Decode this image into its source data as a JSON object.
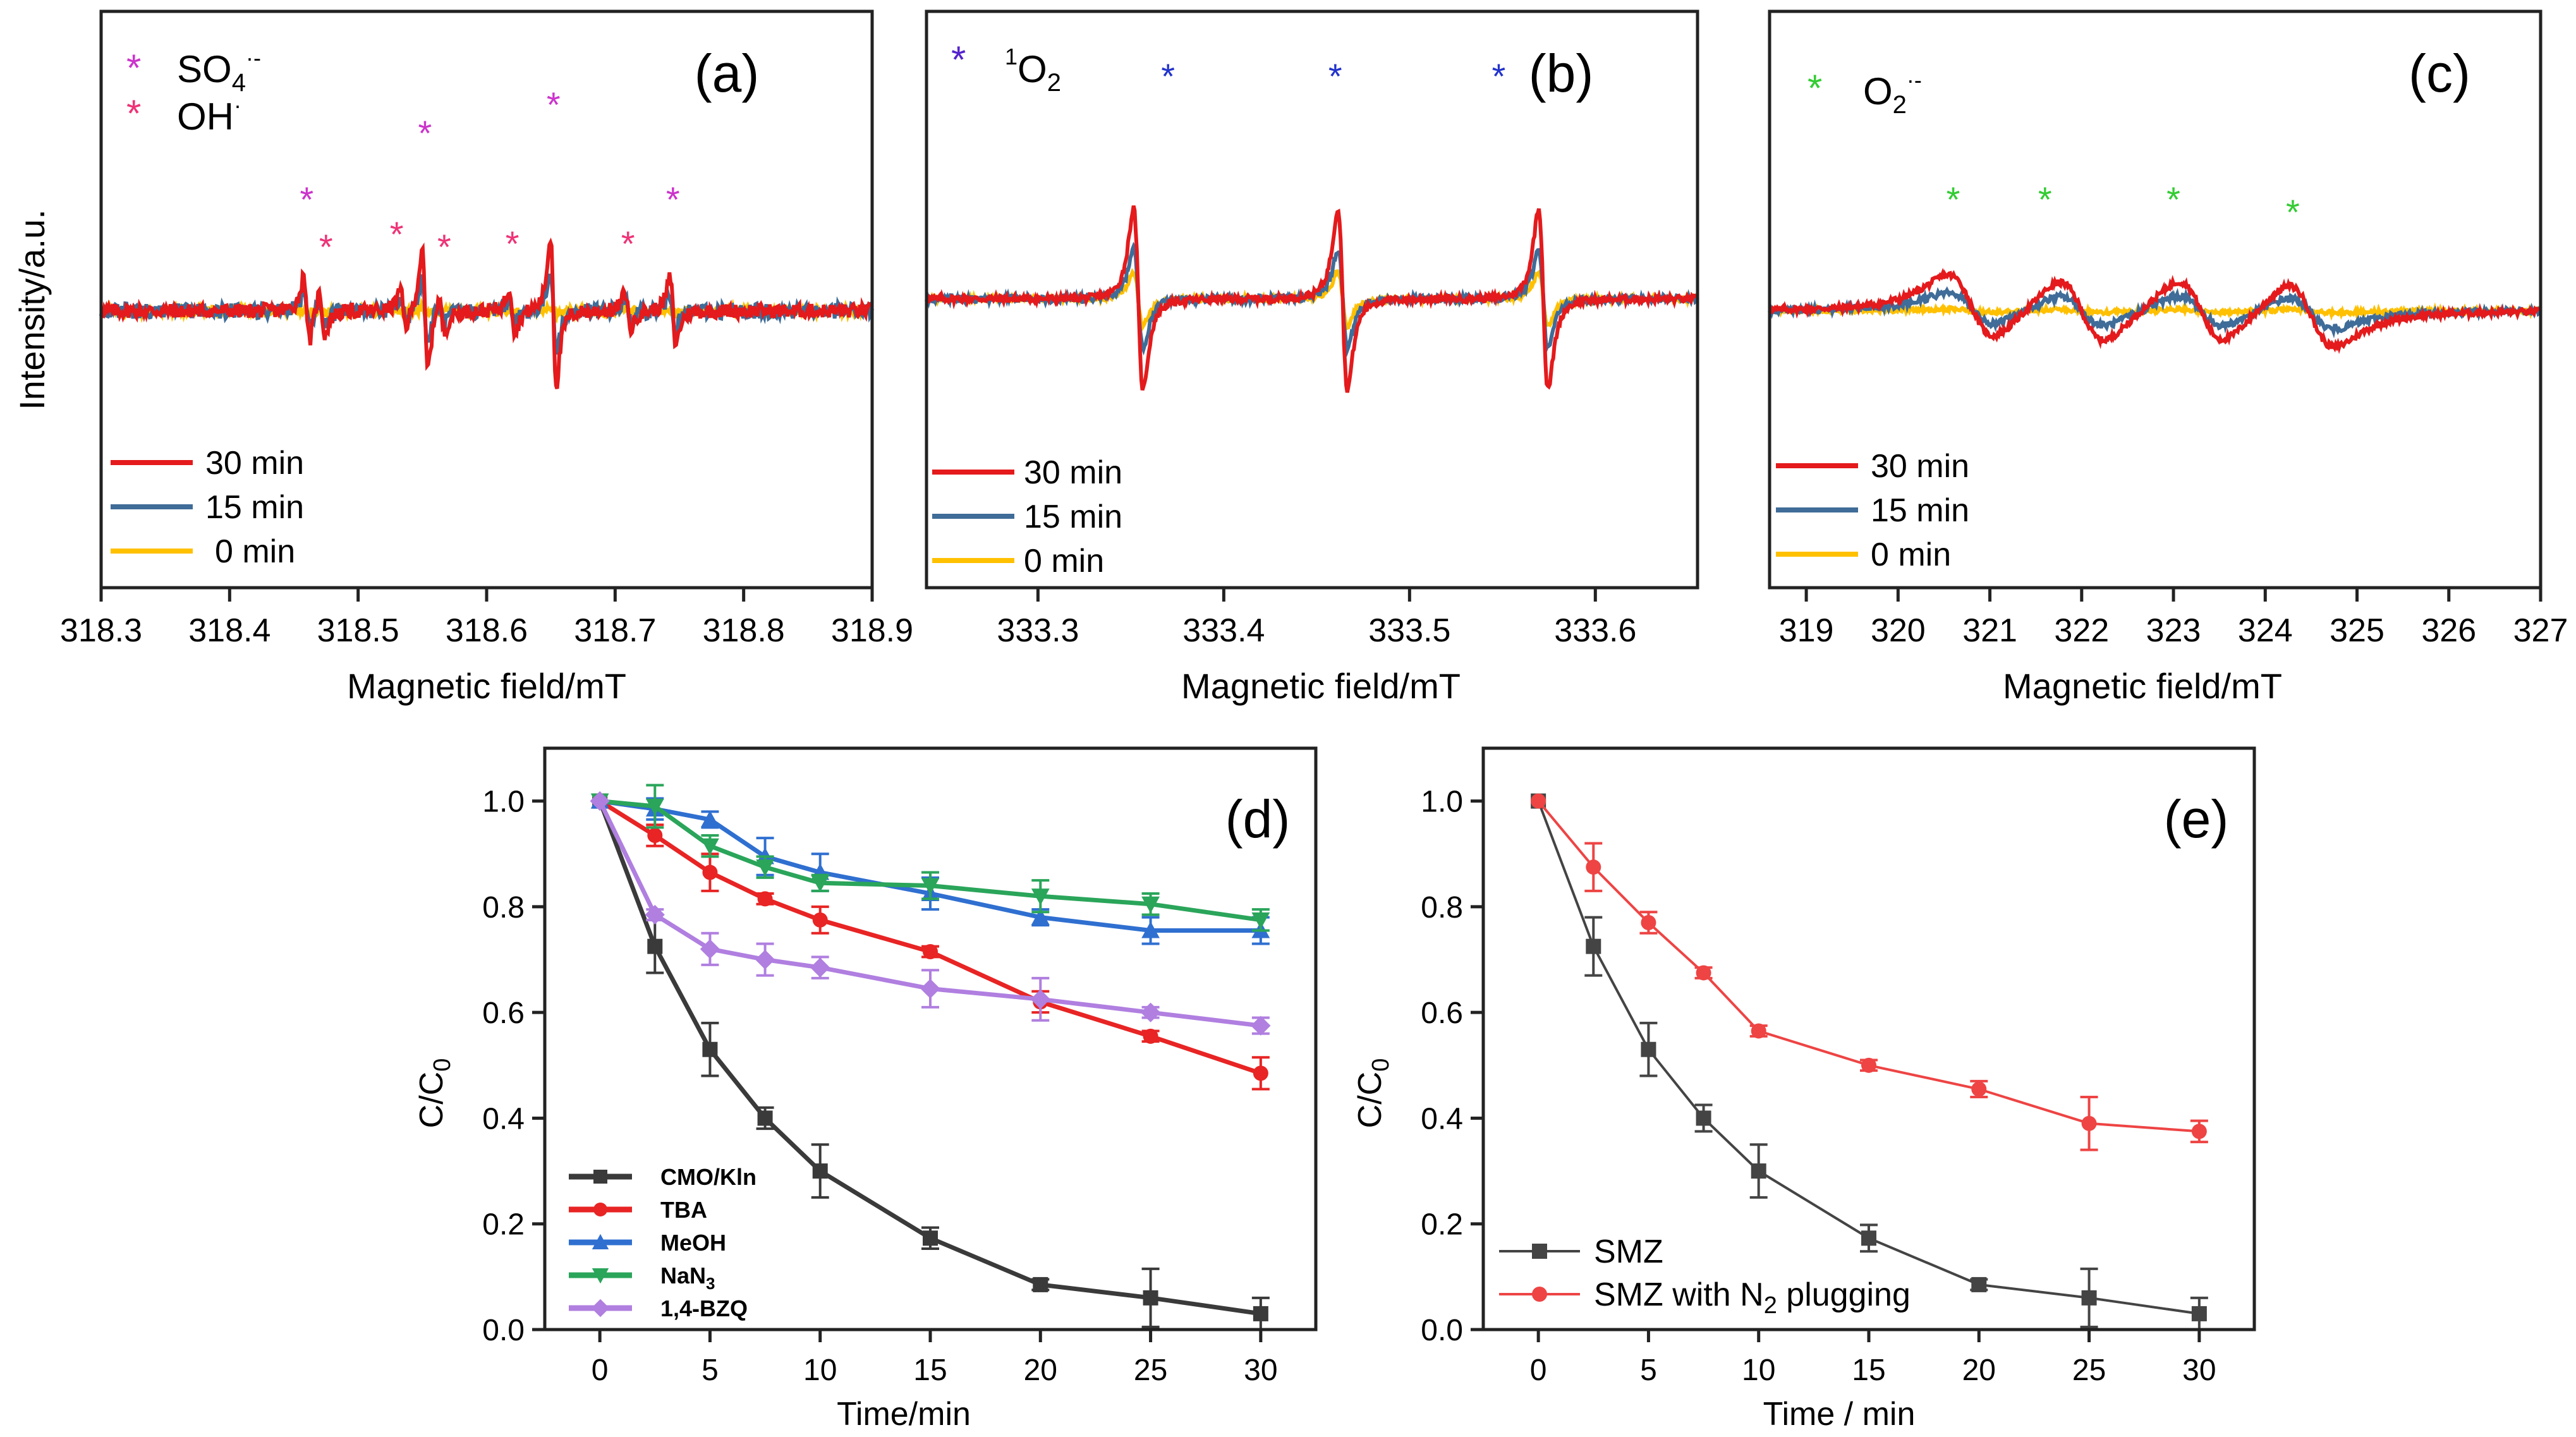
{
  "chart_data": [
    {
      "panel": "(a)",
      "type": "line",
      "ylabel": "Intensity/a.u.",
      "xlabel": "Magnetic field/mT",
      "xlim": [
        318.3,
        318.9
      ],
      "xticks": [
        "318.3",
        "318.4",
        "318.5",
        "318.6",
        "318.7",
        "318.8",
        "318.9"
      ],
      "legend": [
        "30 min",
        "15 min",
        "0 min"
      ],
      "annotations": [
        {
          "marker": "*",
          "text": "SO4",
          "sup": "·-",
          "color": "#cc33cc"
        },
        {
          "marker": "*",
          "text": "OH",
          "sup": "·",
          "color": "#ee3377"
        }
      ],
      "peak_positions": [
        318.46,
        318.472,
        318.535,
        318.552,
        318.565,
        318.62,
        318.652,
        318.71,
        318.745
      ],
      "peak_amplitudes": [
        0.9,
        0.6,
        0.5,
        1.6,
        0.5,
        0.6,
        2.0,
        0.5,
        0.9
      ],
      "series_scale": [
        1.0,
        0.55,
        0.05
      ],
      "marker_x": [
        318.46,
        318.475,
        318.53,
        318.552,
        318.567,
        318.62,
        318.652,
        318.71,
        318.745
      ],
      "marker_color_index": [
        0,
        1,
        1,
        0,
        1,
        1,
        0,
        1,
        0
      ]
    },
    {
      "panel": "(b)",
      "type": "line",
      "xlabel": "Magnetic field/mT",
      "xlim": [
        333.24,
        333.655
      ],
      "xticks": [
        "333.3",
        "333.4",
        "333.5",
        "333.6"
      ],
      "xtick_values": [
        333.3,
        333.4,
        333.5,
        333.6
      ],
      "legend": [
        "30 min",
        "15 min",
        "0 min"
      ],
      "annotations": [
        {
          "marker": "*",
          "text": "O2",
          "pre": "1",
          "color": "#5522cc"
        }
      ],
      "peak_positions": [
        333.354,
        333.464,
        333.572
      ],
      "series_scale": [
        1.0,
        0.55,
        0.3
      ],
      "marker_x": [
        333.37,
        333.46,
        333.548
      ]
    },
    {
      "panel": "(c)",
      "type": "line",
      "xlabel": "Magnetic field/mT",
      "xlim": [
        318.6,
        327
      ],
      "xticks": [
        "319",
        "320",
        "321",
        "322",
        "323",
        "324",
        "325",
        "326",
        "327"
      ],
      "xtick_values": [
        319,
        320,
        321,
        322,
        323,
        324,
        325,
        326,
        327
      ],
      "legend": [
        "30 min",
        "15 min",
        "0 min"
      ],
      "annotations": [
        {
          "marker": "*",
          "text": "O2",
          "sup": "·-",
          "color": "#33cc33"
        }
      ],
      "peak_positions": [
        320.8,
        322.0,
        323.3,
        324.5
      ],
      "series_scale": [
        1.0,
        0.5,
        0.05
      ],
      "marker_x": [
        320.6,
        321.6,
        323.0,
        324.3
      ]
    },
    {
      "panel": "(d)",
      "type": "line",
      "xlabel": "Time/min",
      "ylabel": "C/C0",
      "xlim": [
        -2.5,
        32.5
      ],
      "ylim": [
        0,
        1.1
      ],
      "xticks": [
        "0",
        "5",
        "10",
        "15",
        "20",
        "25",
        "30"
      ],
      "yticks": [
        "0.0",
        "0.2",
        "0.4",
        "0.6",
        "0.8",
        "1.0"
      ],
      "x": [
        0,
        2.5,
        5,
        7.5,
        10,
        15,
        20,
        25,
        30
      ],
      "series": [
        {
          "name": "CMO/Kln",
          "color": "#3a3a3a",
          "marker": "square",
          "values": [
            1.0,
            0.725,
            0.53,
            0.4,
            0.3,
            0.173,
            0.085,
            0.06,
            0.03
          ],
          "errors": [
            0,
            0.05,
            0.05,
            0.02,
            0.05,
            0.02,
            0.01,
            0.055,
            0.03
          ]
        },
        {
          "name": "TBA",
          "color": "#e82424",
          "marker": "circle",
          "values": [
            1.0,
            0.935,
            0.865,
            0.815,
            0.775,
            0.715,
            0.62,
            0.555,
            0.485
          ],
          "errors": [
            0,
            0.02,
            0.035,
            0.01,
            0.025,
            0.01,
            0.02,
            0.01,
            0.03
          ]
        },
        {
          "name": "MeOH",
          "color": "#2f6fd0",
          "marker": "triangle-up",
          "values": [
            1.0,
            0.985,
            0.965,
            0.895,
            0.865,
            0.825,
            0.78,
            0.755,
            0.755
          ],
          "errors": [
            0,
            0.02,
            0.015,
            0.035,
            0.035,
            0.03,
            0.015,
            0.025,
            0.025
          ]
        },
        {
          "name": "NaN3",
          "color": "#2aa55a",
          "marker": "triangle-down",
          "values": [
            1.0,
            0.99,
            0.915,
            0.875,
            0.845,
            0.84,
            0.82,
            0.805,
            0.775
          ],
          "errors": [
            0,
            0.04,
            0.02,
            0.02,
            0.015,
            0.025,
            0.03,
            0.02,
            0.02
          ]
        },
        {
          "name": "1,4-BZQ",
          "color": "#b07fe0",
          "marker": "diamond",
          "values": [
            1.0,
            0.785,
            0.72,
            0.7,
            0.685,
            0.645,
            0.625,
            0.6,
            0.575
          ],
          "errors": [
            0,
            0.01,
            0.03,
            0.03,
            0.02,
            0.035,
            0.04,
            0.01,
            0.015
          ]
        }
      ],
      "legend_labels": [
        "CMO/Kln",
        "TBA",
        "MeOH",
        "NaN",
        "1,4-BZQ"
      ],
      "legend_subscript": "3",
      "legend_position": "bottom-left"
    },
    {
      "panel": "(e)",
      "type": "line",
      "xlabel": "Time / min",
      "ylabel": "C/C0",
      "xlim": [
        -2.5,
        32.5
      ],
      "ylim": [
        0,
        1.1
      ],
      "xticks": [
        "0",
        "5",
        "10",
        "15",
        "20",
        "25",
        "30"
      ],
      "yticks": [
        "0.0",
        "0.2",
        "0.4",
        "0.6",
        "0.8",
        "1.0"
      ],
      "x": [
        0,
        2.5,
        5,
        7.5,
        10,
        15,
        20,
        25,
        30
      ],
      "series": [
        {
          "name": "SMZ",
          "color": "#444444",
          "marker": "square",
          "values": [
            1.0,
            0.725,
            0.53,
            0.4,
            0.3,
            0.173,
            0.085,
            0.06,
            0.03
          ],
          "errors": [
            0,
            0.055,
            0.05,
            0.025,
            0.05,
            0.025,
            0.01,
            0.055,
            0.03
          ]
        },
        {
          "name": "SMZ with N2 plugging",
          "color": "#ee4444",
          "marker": "circle",
          "values": [
            1.0,
            0.875,
            0.77,
            0.675,
            0.565,
            0.5,
            0.455,
            0.39,
            0.375
          ],
          "errors": [
            0,
            0.045,
            0.02,
            0.01,
            0.01,
            0.01,
            0.015,
            0.05,
            0.02
          ]
        }
      ],
      "legend_labels": [
        "SMZ",
        "SMZ with N",
        "plugging"
      ],
      "legend_subscript": "2",
      "legend_position": "bottom-left"
    }
  ],
  "labels": {
    "ylabel_c": "C/C",
    "ylabel_sub": "0",
    "so4_main": "SO",
    "so4_sub": "4",
    "so4_sup": "·-",
    "oh_main": "OH",
    "oh_sup": "·",
    "o2_pre": "1",
    "o2_main": "O",
    "o2_sub": "2",
    "o2c_sup": "·-",
    "star": "*"
  },
  "colors": {
    "red": "#e41a1c",
    "blue": "#3f6c98",
    "yellow": "#ffc000"
  }
}
